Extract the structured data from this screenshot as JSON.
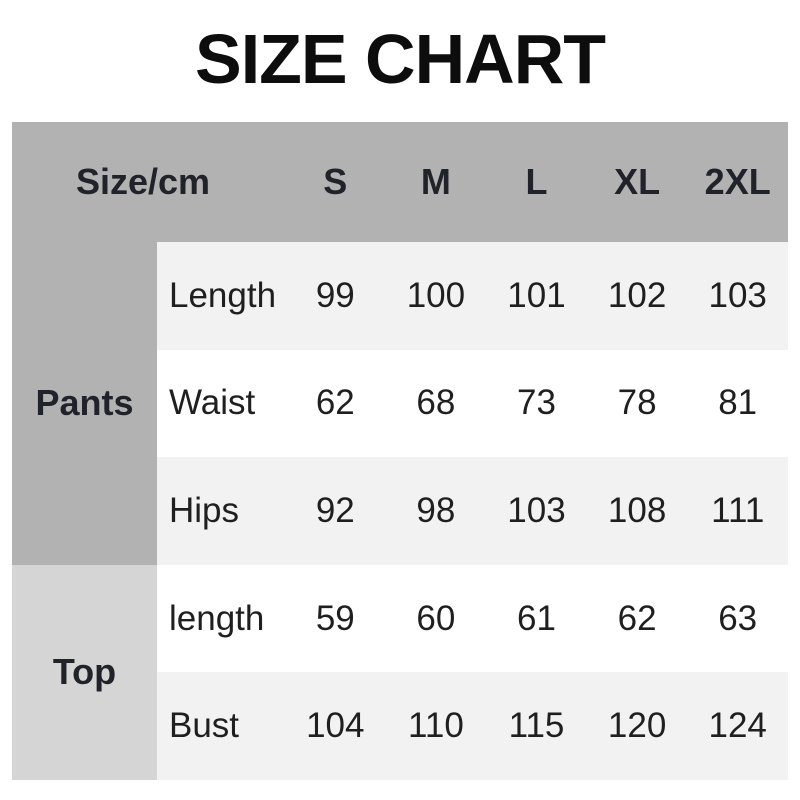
{
  "page": {
    "title": "SIZE CHART"
  },
  "table": {
    "unit_label": "Size/cm",
    "size_headers": [
      "S",
      "M",
      "L",
      "XL",
      "2XL"
    ],
    "groups": [
      {
        "label": "Pants",
        "rows": [
          {
            "label": "Length",
            "values": [
              "99",
              "100",
              "101",
              "102",
              "103"
            ]
          },
          {
            "label": "Waist",
            "values": [
              "62",
              "68",
              "73",
              "78",
              "81"
            ]
          },
          {
            "label": "Hips",
            "values": [
              "92",
              "98",
              "103",
              "108",
              "111"
            ]
          }
        ]
      },
      {
        "label": "Top",
        "rows": [
          {
            "label": "length",
            "values": [
              "59",
              "60",
              "61",
              "62",
              "63"
            ]
          },
          {
            "label": "Bust",
            "values": [
              "104",
              "110",
              "115",
              "120",
              "124"
            ]
          }
        ]
      }
    ],
    "colors": {
      "header_bg": "#b2b2b2",
      "pants_group_bg": "#b2b2b2",
      "top_group_bg": "#d5d5d5",
      "row_shade_bg": "#f2f2f2",
      "row_plain_bg": "#ffffff",
      "text": "#1f1f1f"
    }
  }
}
